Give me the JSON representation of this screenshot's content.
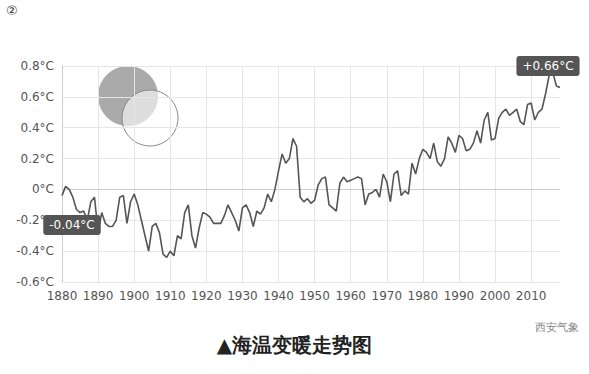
{
  "chart_data": {
    "type": "line",
    "title": "▲海温变暖走势图",
    "panel_label": "②",
    "source": "西安气象",
    "color": "#555555",
    "grid": true,
    "x": [
      1880,
      1881,
      1882,
      1883,
      1884,
      1885,
      1886,
      1887,
      1888,
      1889,
      1890,
      1891,
      1892,
      1893,
      1894,
      1895,
      1896,
      1897,
      1898,
      1899,
      1900,
      1901,
      1902,
      1903,
      1904,
      1905,
      1906,
      1907,
      1908,
      1909,
      1910,
      1911,
      1912,
      1913,
      1914,
      1915,
      1916,
      1917,
      1918,
      1919,
      1920,
      1921,
      1922,
      1923,
      1924,
      1925,
      1926,
      1927,
      1928,
      1929,
      1930,
      1931,
      1932,
      1933,
      1934,
      1935,
      1936,
      1937,
      1938,
      1939,
      1940,
      1941,
      1942,
      1943,
      1944,
      1945,
      1946,
      1947,
      1948,
      1949,
      1950,
      1951,
      1952,
      1953,
      1954,
      1955,
      1956,
      1957,
      1958,
      1959,
      1960,
      1961,
      1962,
      1963,
      1964,
      1965,
      1966,
      1967,
      1968,
      1969,
      1970,
      1971,
      1972,
      1973,
      1974,
      1975,
      1976,
      1977,
      1978,
      1979,
      1980,
      1981,
      1982,
      1983,
      1984,
      1985,
      1986,
      1987,
      1988,
      1989,
      1990,
      1991,
      1992,
      1993,
      1994,
      1995,
      1996,
      1997,
      1998,
      1999,
      2000,
      2001,
      2002,
      2003,
      2004,
      2005,
      2006,
      2007,
      2008,
      2009,
      2010,
      2011,
      2012,
      2013,
      2014,
      2015,
      2016,
      2017,
      2018
    ],
    "values": [
      -0.04,
      0.02,
      0.0,
      -0.05,
      -0.13,
      -0.15,
      -0.14,
      -0.2,
      -0.08,
      -0.05,
      -0.28,
      -0.15,
      -0.22,
      -0.24,
      -0.24,
      -0.2,
      -0.05,
      -0.04,
      -0.22,
      -0.08,
      -0.03,
      -0.1,
      -0.2,
      -0.3,
      -0.4,
      -0.24,
      -0.22,
      -0.28,
      -0.42,
      -0.44,
      -0.4,
      -0.43,
      -0.3,
      -0.32,
      -0.15,
      -0.1,
      -0.3,
      -0.38,
      -0.25,
      -0.15,
      -0.16,
      -0.18,
      -0.22,
      -0.22,
      -0.22,
      -0.17,
      -0.1,
      -0.15,
      -0.2,
      -0.27,
      -0.12,
      -0.1,
      -0.15,
      -0.24,
      -0.14,
      -0.16,
      -0.12,
      -0.03,
      -0.08,
      0.0,
      0.12,
      0.23,
      0.17,
      0.2,
      0.33,
      0.28,
      -0.05,
      -0.08,
      -0.06,
      -0.09,
      -0.07,
      0.03,
      0.07,
      0.08,
      -0.1,
      -0.12,
      -0.14,
      0.04,
      0.08,
      0.05,
      0.06,
      0.07,
      0.08,
      0.07,
      -0.1,
      -0.03,
      -0.02,
      0.0,
      -0.05,
      0.1,
      0.05,
      -0.08,
      0.1,
      0.12,
      -0.04,
      -0.01,
      -0.03,
      0.17,
      0.1,
      0.2,
      0.26,
      0.24,
      0.2,
      0.3,
      0.18,
      0.15,
      0.2,
      0.34,
      0.3,
      0.24,
      0.35,
      0.33,
      0.25,
      0.26,
      0.3,
      0.38,
      0.3,
      0.45,
      0.5,
      0.32,
      0.33,
      0.46,
      0.5,
      0.52,
      0.48,
      0.5,
      0.52,
      0.44,
      0.42,
      0.55,
      0.56,
      0.45,
      0.5,
      0.52,
      0.62,
      0.74,
      0.76,
      0.67,
      0.66
    ],
    "xlim": [
      1880,
      2018
    ],
    "xticks": [
      1880,
      1890,
      1900,
      1910,
      1920,
      1930,
      1940,
      1950,
      1960,
      1970,
      1980,
      1990,
      2000,
      2010
    ],
    "ylim": [
      -0.6,
      0.8
    ],
    "yticks": [
      {
        "value": -0.6,
        "label": "-0.6°C"
      },
      {
        "value": -0.4,
        "label": "-0.4°C"
      },
      {
        "value": -0.2,
        "label": "-0.2°C"
      },
      {
        "value": 0,
        "label": "0°C"
      },
      {
        "value": 0.2,
        "label": "0.2°C"
      },
      {
        "value": 0.4,
        "label": "0.4°C"
      },
      {
        "value": 0.6,
        "label": "0.6°C"
      },
      {
        "value": 0.8,
        "label": "0.8°C"
      }
    ],
    "annotations": [
      {
        "text": "-0.04°C",
        "x": 1880,
        "y": -0.04
      },
      {
        "text": "+0.66°C",
        "x": 2018,
        "y": 0.66
      }
    ]
  }
}
